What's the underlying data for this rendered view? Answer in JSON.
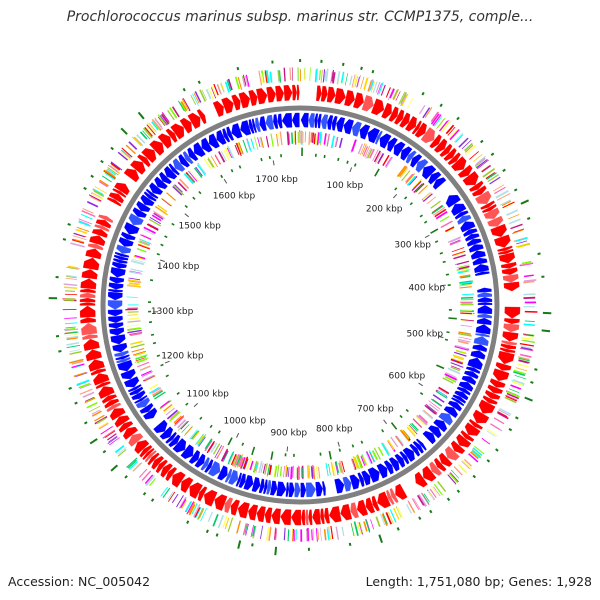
{
  "title": "Prochlorococcus marinus subsp. marinus str. CCMP1375, comple...",
  "accession_text": "Accession: NC_005042",
  "summary_text": "Length: 1,751,080 bp; Genes: 1,928",
  "genome": {
    "length_bp": 1751080,
    "tick_interval_kbp": 100,
    "tick_labels": [
      "100 kbp",
      "200 kbp",
      "300 kbp",
      "400 kbp",
      "500 kbp",
      "600 kbp",
      "700 kbp",
      "800 kbp",
      "900 kbp",
      "1000 kbp",
      "1100 kbp",
      "1200 kbp",
      "1300 kbp",
      "1400 kbp",
      "1500 kbp",
      "1600 kbp",
      "1700 kbp"
    ]
  },
  "colors": {
    "forward_strand": "#ff0000",
    "reverse_strand": "#0000ff",
    "backbone": "#808080",
    "marker": "#1a7a1a",
    "feature_palette": [
      "#ff00ff",
      "#ff69b4",
      "#ff0000",
      "#ffd700",
      "#ffff66",
      "#00ffff",
      "#9acd32",
      "#ff8c00",
      "#8a2be2",
      "#00cc66",
      "#c71585",
      "#ffa07a",
      "#b0e0e6",
      "#dda0dd",
      "#7cfc00"
    ]
  }
}
